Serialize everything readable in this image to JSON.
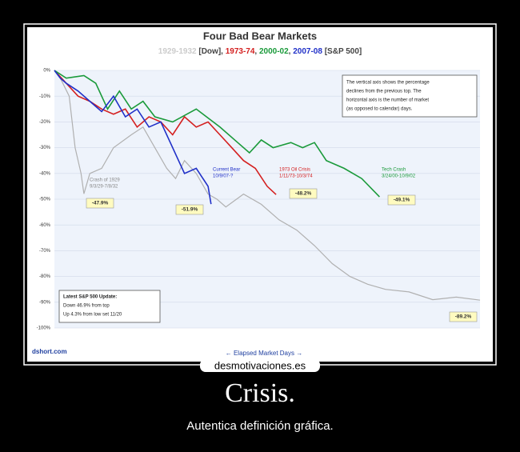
{
  "chart_data": {
    "type": "line",
    "title": "Four Bad Bear Markets",
    "subtitle_notes": [
      "[Dow],",
      "[S&P 500]"
    ],
    "xlabel": "← Elapsed Market Days →",
    "source": "dshort.com",
    "xlim": [
      0,
      720
    ],
    "ylim": [
      -100,
      0
    ],
    "yticks": [
      {
        "value": 0,
        "label": "0%"
      },
      {
        "value": -10,
        "label": "-10%"
      },
      {
        "value": -20,
        "label": "-20%"
      },
      {
        "value": -30,
        "label": "-30%"
      },
      {
        "value": -40,
        "label": "-40%"
      },
      {
        "value": -50,
        "label": "-50%"
      },
      {
        "value": -60,
        "label": "-60%"
      },
      {
        "value": -70,
        "label": "-70%"
      },
      {
        "value": -80,
        "label": "-80%"
      },
      {
        "value": -90,
        "label": "-90%"
      },
      {
        "value": -100,
        "label": "-100%"
      }
    ],
    "series": [
      {
        "name": "1929-1932",
        "color": "#b0b0b0",
        "x": [
          0,
          10,
          25,
          35,
          45,
          50,
          60,
          80,
          100,
          130,
          150,
          165,
          190,
          205,
          220,
          240,
          260,
          275,
          290,
          320,
          350,
          380,
          410,
          440,
          470,
          500,
          530,
          560,
          600,
          640,
          680,
          720
        ],
        "values": [
          0,
          -3,
          -10,
          -30,
          -40,
          -47.9,
          -40,
          -38,
          -30,
          -25,
          -22,
          -28,
          -38,
          -42,
          -35,
          -40,
          -48,
          -50,
          -53,
          -48,
          -52,
          -58,
          -62,
          -68,
          -75,
          -80,
          -83,
          -85,
          -86,
          -89,
          -88,
          -89.2
        ]
      },
      {
        "name": "1973-74",
        "color": "#d42020",
        "x": [
          0,
          20,
          40,
          60,
          80,
          100,
          120,
          140,
          160,
          180,
          200,
          220,
          240,
          260,
          280,
          300,
          320,
          340,
          360,
          375
        ],
        "values": [
          0,
          -5,
          -10,
          -12,
          -15,
          -17,
          -15,
          -22,
          -18,
          -20,
          -25,
          -18,
          -22,
          -20,
          -25,
          -30,
          -35,
          -38,
          -45,
          -48.2
        ]
      },
      {
        "name": "2000-02",
        "color": "#1a9a3a",
        "x": [
          0,
          20,
          50,
          70,
          90,
          110,
          130,
          150,
          170,
          200,
          240,
          280,
          310,
          330,
          350,
          370,
          400,
          420,
          440,
          460,
          490,
          520,
          550
        ],
        "values": [
          0,
          -3,
          -2,
          -5,
          -15,
          -8,
          -15,
          -12,
          -18,
          -20,
          -15,
          -22,
          -28,
          -32,
          -27,
          -30,
          -28,
          -30,
          -28,
          -35,
          -38,
          -42,
          -49.1
        ]
      },
      {
        "name": "2007-08",
        "color": "#2030c8",
        "x": [
          0,
          10,
          20,
          40,
          60,
          80,
          100,
          120,
          140,
          160,
          180,
          200,
          220,
          240,
          260,
          265
        ],
        "values": [
          0,
          -3,
          -5,
          -8,
          -12,
          -16,
          -10,
          -18,
          -15,
          -22,
          -20,
          -30,
          -40,
          -38,
          -45,
          -51.9
        ]
      }
    ],
    "annotations": [
      {
        "lines": [
          "Crash of 1929",
          "9/3/29-7/8/32"
        ],
        "badge": "-47.9%"
      },
      {
        "lines": [
          "1973 Oil Crisis",
          "1/11/73-10/3/74"
        ],
        "badge": "-48.2%"
      },
      {
        "lines": [
          "Tech Crash",
          "3/24/00-10/9/02"
        ],
        "badge": "-49.1%"
      },
      {
        "lines": [
          "Current Bear",
          "10/9/07-?"
        ],
        "badge": "-51.9%"
      },
      {
        "lines": [],
        "badge": "-89.2%"
      }
    ],
    "note": [
      "The vertical axis shows the percentage",
      "declines from the previous top. The",
      "horizontal axis is the number of market",
      "(as opposed to calendar) days."
    ],
    "update": [
      "Latest S&P 500 Update:",
      "Down 46.9% from top",
      "Up 4.3% from low set 11/20"
    ]
  },
  "poster": {
    "watermark": "desmotivaciones.es",
    "title": "Crisis.",
    "caption": "Autentica definición gráfica."
  }
}
